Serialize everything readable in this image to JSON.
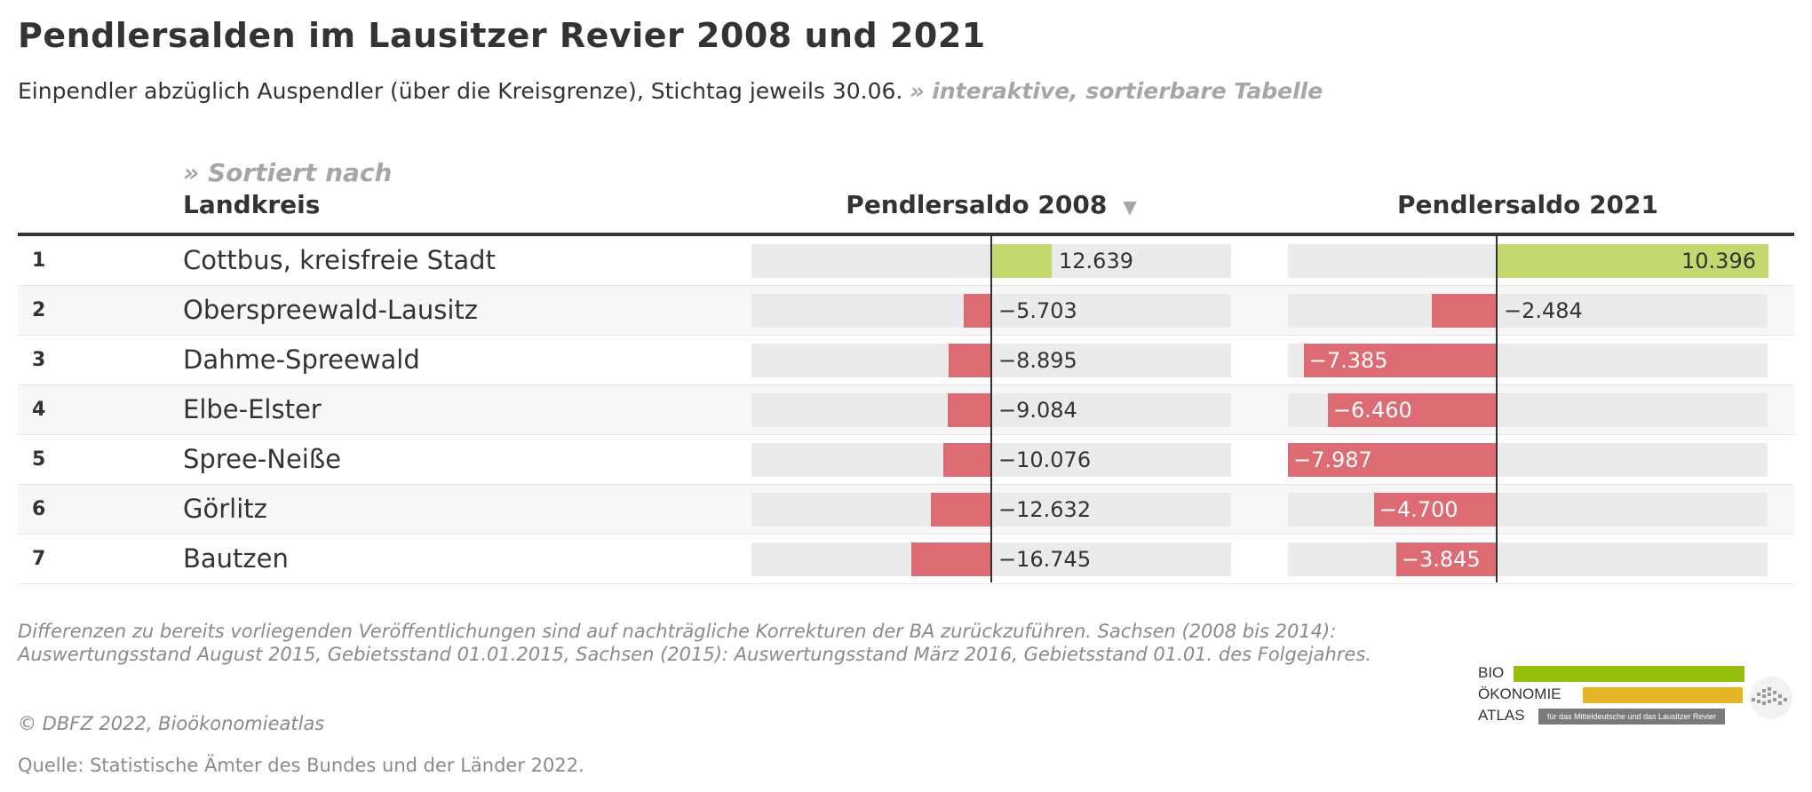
{
  "title": "Pendlersalden im Lausitzer Revier 2008 und 2021",
  "subtitle": "Einpendler abzüglich Auspendler (über die Kreisgrenze), Stichtag jeweils 30.06.",
  "subtitle_link": "» interaktive, sortierbare Tabelle",
  "sorted_by": "» Sortiert nach",
  "columns": {
    "landkreis": "Landkreis",
    "saldo_2008": "Pendlersaldo 2008",
    "saldo_2021": "Pendlersaldo 2021",
    "sort_indicator": "▼"
  },
  "chart_data": {
    "type": "table",
    "scale_2008": [
      -16745,
      12639
    ],
    "scale_2021": [
      -7987,
      10396
    ],
    "colors": {
      "positive": "#c3d96e",
      "negative": "#dd6b74",
      "track": "#ebebeb"
    },
    "rows": [
      {
        "rank": "1",
        "landkreis": "Cottbus, kreisfreie Stadt",
        "v2008": 12639,
        "l2008": "12.639",
        "v2021": 10396,
        "l2021": "10.396"
      },
      {
        "rank": "2",
        "landkreis": "Oberspreewald-Lausitz",
        "v2008": -5703,
        "l2008": "−5.703",
        "v2021": -2484,
        "l2021": "−2.484"
      },
      {
        "rank": "3",
        "landkreis": "Dahme-Spreewald",
        "v2008": -8895,
        "l2008": "−8.895",
        "v2021": -7385,
        "l2021": "−7.385"
      },
      {
        "rank": "4",
        "landkreis": "Elbe-Elster",
        "v2008": -9084,
        "l2008": "−9.084",
        "v2021": -6460,
        "l2021": "−6.460"
      },
      {
        "rank": "5",
        "landkreis": "Spree-Neiße",
        "v2008": -10076,
        "l2008": "−10.076",
        "v2021": -7987,
        "l2021": "−7.987"
      },
      {
        "rank": "6",
        "landkreis": "Görlitz",
        "v2008": -12632,
        "l2008": "−12.632",
        "v2021": -4700,
        "l2021": "−4.700"
      },
      {
        "rank": "7",
        "landkreis": "Bautzen",
        "v2008": -16745,
        "l2008": "−16.745",
        "v2021": -3845,
        "l2021": "−3.845"
      }
    ]
  },
  "footnote": "Differenzen zu bereits vorliegenden Veröffentlichungen sind auf nachträgliche Korrekturen der BA zurückzuführen. Sachsen (2008 bis 2014): Auswertungsstand August 2015, Gebietsstand 01.01.2015, Sachsen (2015): Auswertungsstand März 2016, Gebietsstand 01.01. des Folgejahres.",
  "copyright": "© DBFZ 2022, Bioökonomieatlas",
  "source": "Quelle: Statistische Ämter des Bundes und der Länder 2022.",
  "logo": {
    "line1": "BIO",
    "line2": "ÖKONOMIE",
    "line3": "ATLAS",
    "tagline": "für das Mitteldeutsche und das Lausitzer Revier",
    "color_green": "#96bf0d",
    "color_yellow": "#e6b429",
    "color_gray": "#7a7a7a"
  }
}
